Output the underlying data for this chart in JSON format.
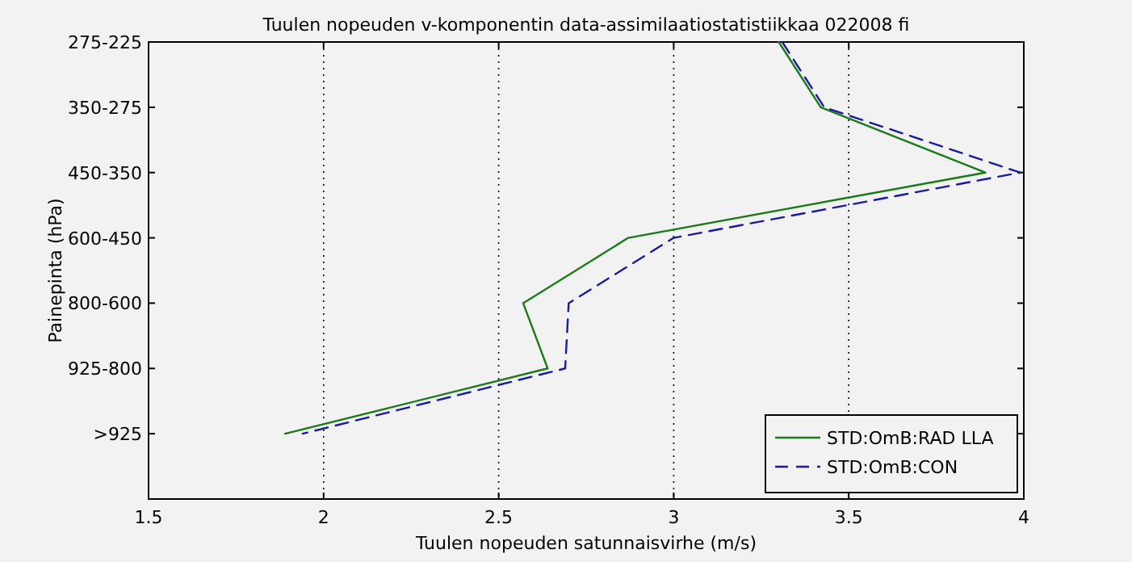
{
  "chart_data": {
    "type": "line",
    "orientation": "horizontal",
    "title": "Tuulen nopeuden v-komponentin data-assimilaatiostatistiikkaa 022008 fi",
    "xlabel": "Tuulen nopeuden satunnaisvirhe (m/s)",
    "ylabel": "Painepinta (hPa)",
    "categories": [
      "275-225",
      "350-275",
      "450-350",
      "600-450",
      "800-600",
      "925-800",
      ">925"
    ],
    "xlim": [
      1.5,
      4
    ],
    "xticks": [
      1.5,
      2,
      2.5,
      3,
      3.5,
      4
    ],
    "grid": "x",
    "legend": "bottom right",
    "series": [
      {
        "name": "STD:OmB:RAD LLA",
        "color": "#1a7a1a",
        "line_style": "solid",
        "values": [
          3.3,
          3.42,
          3.89,
          2.87,
          2.57,
          2.64,
          1.89
        ]
      },
      {
        "name": "STD:OmB:CON",
        "color": "#1a1aa0",
        "line_style": "dashed",
        "values": [
          3.31,
          3.43,
          3.99,
          3.0,
          2.7,
          2.69,
          1.94
        ]
      }
    ]
  }
}
